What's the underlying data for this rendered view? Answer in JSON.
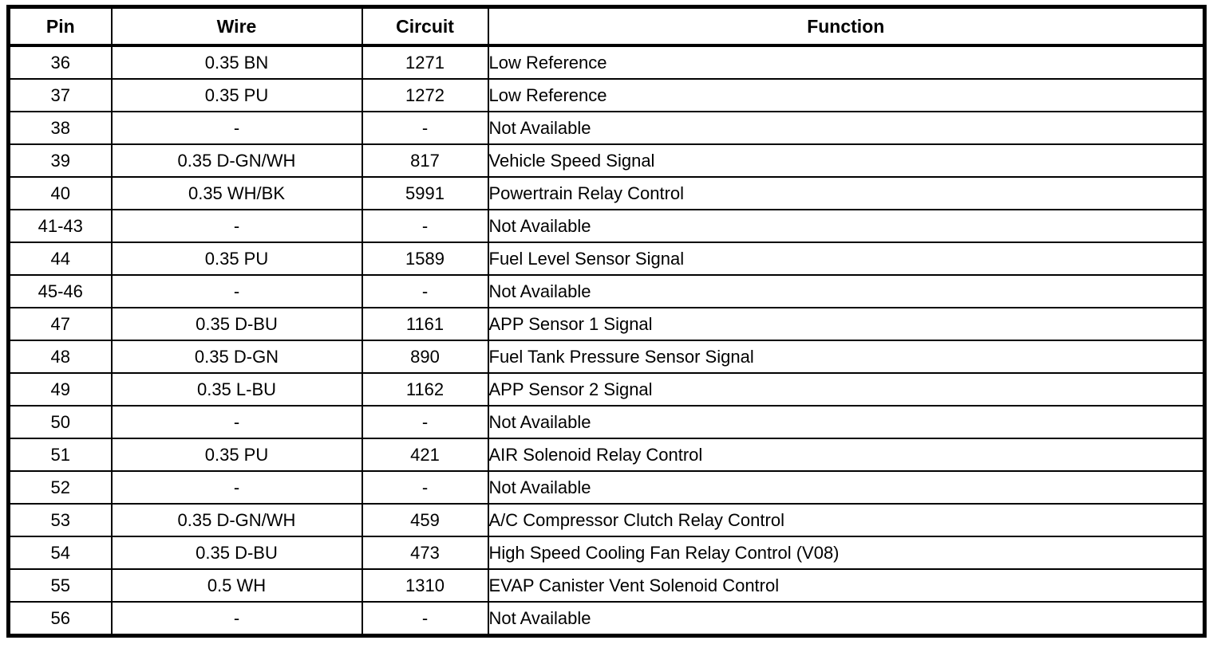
{
  "table": {
    "columns": [
      {
        "key": "pin",
        "label": "Pin"
      },
      {
        "key": "wire",
        "label": "Wire"
      },
      {
        "key": "circuit",
        "label": "Circuit"
      },
      {
        "key": "function",
        "label": "Function"
      }
    ],
    "rows": [
      {
        "pin": "36",
        "wire": "0.35 BN",
        "circuit": "1271",
        "function": "Low Reference"
      },
      {
        "pin": "37",
        "wire": "0.35 PU",
        "circuit": "1272",
        "function": "Low Reference"
      },
      {
        "pin": "38",
        "wire": "-",
        "circuit": "-",
        "function": "Not Available"
      },
      {
        "pin": "39",
        "wire": "0.35 D-GN/WH",
        "circuit": "817",
        "function": "Vehicle Speed Signal"
      },
      {
        "pin": "40",
        "wire": "0.35 WH/BK",
        "circuit": "5991",
        "function": "Powertrain Relay Control"
      },
      {
        "pin": "41-43",
        "wire": "-",
        "circuit": "-",
        "function": "Not Available"
      },
      {
        "pin": "44",
        "wire": "0.35 PU",
        "circuit": "1589",
        "function": "Fuel Level Sensor Signal"
      },
      {
        "pin": "45-46",
        "wire": "-",
        "circuit": "-",
        "function": "Not Available"
      },
      {
        "pin": "47",
        "wire": "0.35 D-BU",
        "circuit": "1161",
        "function": "APP Sensor 1 Signal"
      },
      {
        "pin": "48",
        "wire": "0.35 D-GN",
        "circuit": "890",
        "function": "Fuel Tank Pressure Sensor Signal"
      },
      {
        "pin": "49",
        "wire": "0.35 L-BU",
        "circuit": "1162",
        "function": "APP Sensor 2 Signal"
      },
      {
        "pin": "50",
        "wire": "-",
        "circuit": "-",
        "function": "Not Available"
      },
      {
        "pin": "51",
        "wire": "0.35 PU",
        "circuit": "421",
        "function": "AIR Solenoid Relay Control"
      },
      {
        "pin": "52",
        "wire": "-",
        "circuit": "-",
        "function": "Not Available"
      },
      {
        "pin": "53",
        "wire": "0.35 D-GN/WH",
        "circuit": "459",
        "function": "A/C Compressor Clutch Relay Control"
      },
      {
        "pin": "54",
        "wire": "0.35 D-BU",
        "circuit": "473",
        "function": "High Speed Cooling Fan Relay Control (V08)"
      },
      {
        "pin": "55",
        "wire": "0.5 WH",
        "circuit": "1310",
        "function": "EVAP Canister Vent Solenoid Control"
      },
      {
        "pin": "56",
        "wire": "-",
        "circuit": "-",
        "function": "Not Available"
      }
    ],
    "colors": {
      "border": "#000000",
      "background": "#ffffff",
      "text": "#000000"
    }
  }
}
